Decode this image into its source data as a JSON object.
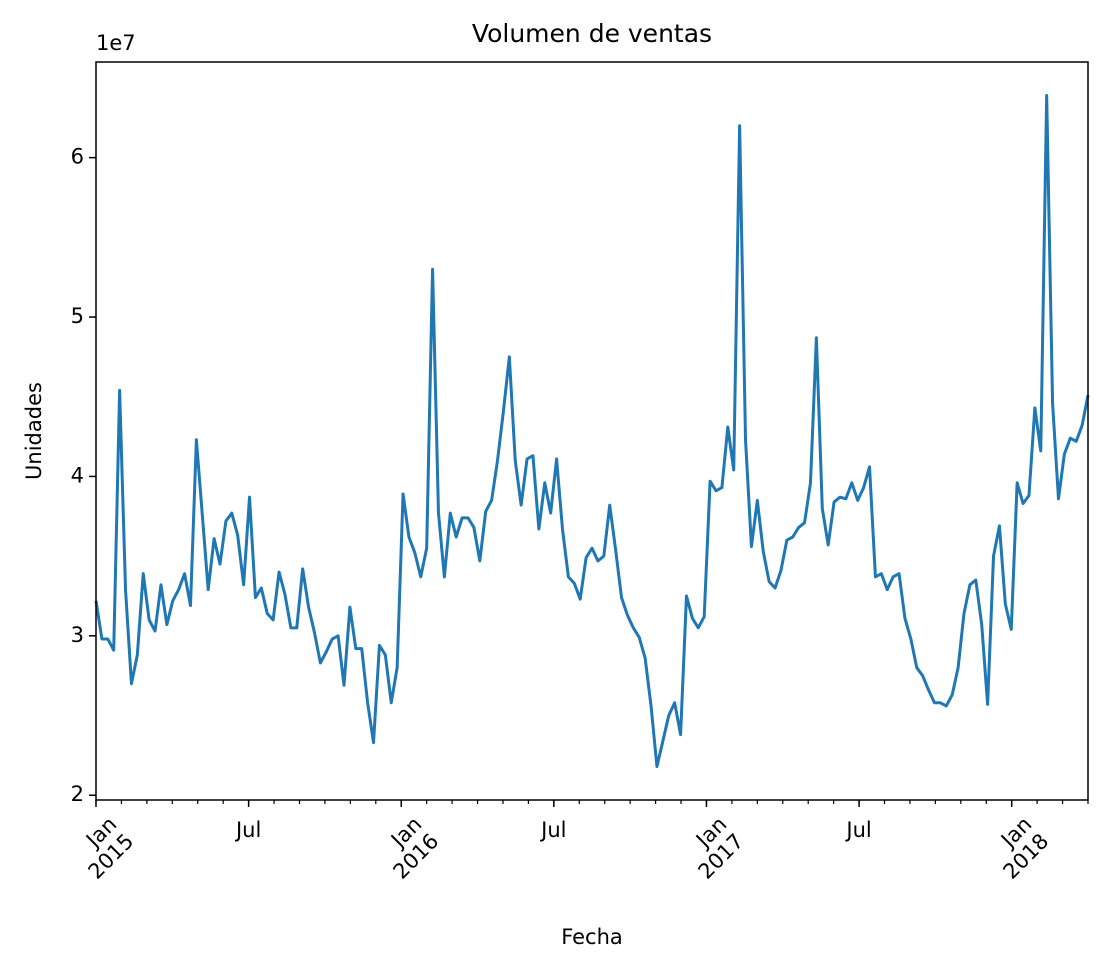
{
  "chart_data": {
    "type": "line",
    "title": "Volumen de ventas",
    "xlabel": "Fecha",
    "ylabel": "Unidades",
    "y_offset_label": "1e7",
    "xlim": [
      "2015-01",
      "2018-03"
    ],
    "xticks": [
      {
        "value": "2015-01",
        "label": "Jan\n2015"
      },
      {
        "value": "2015-07",
        "label": "Jul"
      },
      {
        "value": "2016-01",
        "label": "Jan\n2016"
      },
      {
        "value": "2016-07",
        "label": "Jul"
      },
      {
        "value": "2017-01",
        "label": "Jan\n2017"
      },
      {
        "value": "2017-07",
        "label": "Jul"
      },
      {
        "value": "2018-01",
        "label": "Jan\n2018"
      }
    ],
    "ylim": [
      1.97,
      6.6
    ],
    "yticks": [
      2,
      3,
      4,
      5,
      6
    ],
    "series": [
      {
        "color": "#1f77b4",
        "values": [
          3.22,
          2.98,
          2.98,
          2.91,
          4.54,
          3.29,
          2.7,
          2.88,
          3.39,
          3.1,
          3.03,
          3.32,
          3.07,
          3.22,
          3.29,
          3.39,
          3.19,
          4.23,
          3.76,
          3.29,
          3.61,
          3.45,
          3.72,
          3.77,
          3.63,
          3.32,
          3.87,
          3.24,
          3.3,
          3.14,
          3.1,
          3.4,
          3.26,
          3.05,
          3.05,
          3.42,
          3.18,
          3.02,
          2.83,
          2.9,
          2.98,
          3.0,
          2.69,
          3.18,
          2.92,
          2.92,
          2.58,
          2.33,
          2.94,
          2.88,
          2.58,
          2.8,
          3.89,
          3.62,
          3.52,
          3.37,
          3.55,
          5.3,
          3.77,
          3.37,
          3.77,
          3.62,
          3.74,
          3.74,
          3.68,
          3.47,
          3.78,
          3.85,
          4.1,
          4.41,
          4.75,
          4.1,
          3.82,
          4.11,
          4.13,
          3.67,
          3.96,
          3.77,
          4.11,
          3.67,
          3.37,
          3.33,
          3.23,
          3.49,
          3.55,
          3.47,
          3.5,
          3.82,
          3.54,
          3.24,
          3.13,
          3.05,
          2.99,
          2.86,
          2.56,
          2.18,
          2.34,
          2.5,
          2.58,
          2.38,
          3.25,
          3.11,
          3.05,
          3.12,
          3.97,
          3.91,
          3.93,
          4.31,
          4.04,
          6.2,
          4.23,
          3.56,
          3.85,
          3.53,
          3.34,
          3.3,
          3.41,
          3.6,
          3.62,
          3.68,
          3.71,
          3.96,
          4.87,
          3.8,
          3.57,
          3.84,
          3.87,
          3.86,
          3.96,
          3.85,
          3.93,
          4.06,
          3.37,
          3.39,
          3.29,
          3.37,
          3.39,
          3.11,
          2.98,
          2.8,
          2.75,
          2.66,
          2.58,
          2.58,
          2.56,
          2.63,
          2.8,
          3.14,
          3.32,
          3.35,
          3.07,
          2.57,
          3.5,
          3.69,
          3.2,
          3.04,
          3.96,
          3.83,
          3.88,
          4.43,
          4.16,
          6.39,
          4.46,
          3.86,
          4.14,
          4.24,
          4.22,
          4.32,
          4.51
        ]
      }
    ]
  }
}
